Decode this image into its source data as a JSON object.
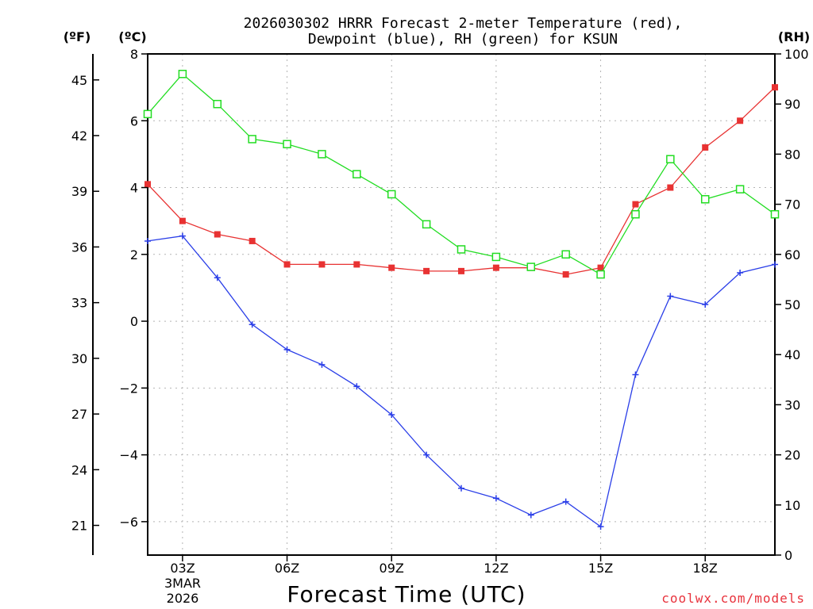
{
  "chart_data": {
    "type": "line",
    "title_lines": [
      "2026030302 HRRR Forecast 2-meter Temperature (red),",
      "Dewpoint (blue), RH (green) for KSUN"
    ],
    "xlabel": "Forecast Time (UTC)",
    "credit": "coolwx.com/models",
    "units": {
      "fahrenheit": "(ºF)",
      "celsius": "(ºC)",
      "rh": "(RH)"
    },
    "x_start_label": [
      "03Z",
      "3MAR",
      "2026"
    ],
    "x_tick_labels": [
      "06Z",
      "09Z",
      "12Z",
      "15Z",
      "18Z"
    ],
    "x_range_hours": [
      2,
      20
    ],
    "x_tick_hours": [
      3,
      6,
      9,
      12,
      15,
      18
    ],
    "y_left_c": {
      "range": [
        -7,
        8
      ],
      "ticks": [
        -6,
        -4,
        -2,
        0,
        2,
        4,
        6,
        8
      ],
      "labels": [
        "−6",
        "−4",
        "−2",
        "0",
        "2",
        "4",
        "6",
        "8"
      ]
    },
    "y_left_f": {
      "ticks": [
        21,
        24,
        27,
        30,
        33,
        36,
        39,
        42,
        45
      ],
      "labels": [
        "21",
        "24",
        "27",
        "30",
        "33",
        "36",
        "39",
        "42",
        "45"
      ]
    },
    "y_right_rh": {
      "range": [
        0,
        100
      ],
      "ticks": [
        0,
        10,
        20,
        30,
        40,
        50,
        60,
        70,
        80,
        90,
        100
      ],
      "labels": [
        "0",
        "10",
        "20",
        "30",
        "40",
        "50",
        "60",
        "70",
        "80",
        "90",
        "100"
      ]
    },
    "x": [
      2,
      3,
      4,
      5,
      6,
      7,
      8,
      9,
      10,
      11,
      12,
      13,
      14,
      15,
      16,
      17,
      18,
      19,
      20
    ],
    "series": [
      {
        "name": "Temperature",
        "color": "#e83232",
        "marker": "filled-square",
        "axis": "celsius",
        "values": [
          4.1,
          3.0,
          2.6,
          2.4,
          1.7,
          1.7,
          1.7,
          1.6,
          1.5,
          1.5,
          1.6,
          1.6,
          1.4,
          1.6,
          3.5,
          4.0,
          5.2,
          6.0,
          7.0
        ]
      },
      {
        "name": "Dewpoint",
        "color": "#2a3ee8",
        "marker": "plus",
        "axis": "celsius",
        "values": [
          2.4,
          2.55,
          1.3,
          -0.1,
          -0.85,
          -1.3,
          -1.95,
          -2.8,
          -4.0,
          -5.0,
          -5.3,
          -5.8,
          -5.4,
          -6.15,
          -1.6,
          0.75,
          0.5,
          1.45,
          1.7
        ]
      },
      {
        "name": "RH",
        "color": "#22dd22",
        "marker": "open-square",
        "axis": "rh",
        "values": [
          88,
          96,
          90,
          83,
          82,
          80,
          76,
          72,
          66,
          61,
          59.5,
          57.5,
          60,
          56,
          68,
          79,
          71,
          73,
          68
        ]
      }
    ]
  }
}
